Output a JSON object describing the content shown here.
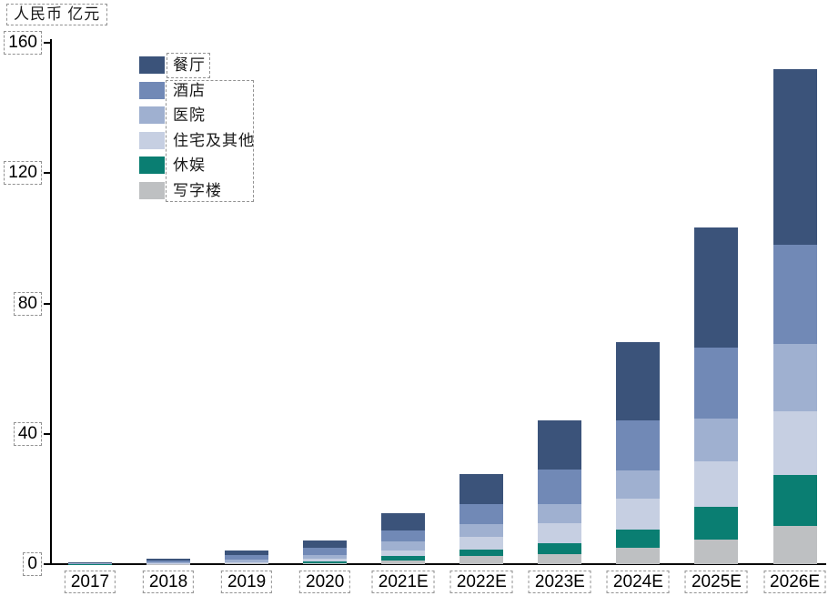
{
  "axis": {
    "y_title": "人民币 亿元",
    "y_ticks": [
      "0",
      "40",
      "80",
      "120",
      "160"
    ],
    "x_labels": [
      "2017",
      "2018",
      "2019",
      "2020",
      "2021E",
      "2022E",
      "2023E",
      "2024E",
      "2025E",
      "2026E"
    ]
  },
  "chart_data": {
    "type": "bar",
    "stacked": true,
    "title": "",
    "xlabel": "",
    "ylabel": "人民币 亿元",
    "categories": [
      "2017",
      "2018",
      "2019",
      "2020",
      "2021E",
      "2022E",
      "2023E",
      "2024E",
      "2025E",
      "2026E"
    ],
    "series": [
      {
        "name": "餐厅",
        "color": "#3b537a",
        "values": [
          0.3,
          0.5,
          1.5,
          2.5,
          5.4,
          9.1,
          15.1,
          24.0,
          36.7,
          54.0
        ]
      },
      {
        "name": "酒店",
        "color": "#7189b6",
        "values": [
          0.2,
          0.7,
          1.3,
          2.0,
          3.3,
          6.2,
          10.6,
          15.3,
          22.0,
          30.2
        ]
      },
      {
        "name": "医院",
        "color": "#9fb0d0",
        "values": [
          0.1,
          0.3,
          0.8,
          1.2,
          2.7,
          3.8,
          5.8,
          8.8,
          13.1,
          20.8
        ]
      },
      {
        "name": "住宅及其他",
        "color": "#c6cfe2",
        "values": [
          0.05,
          0.1,
          0.3,
          0.8,
          1.9,
          3.9,
          6.3,
          9.4,
          13.9,
          19.4
        ]
      },
      {
        "name": "休娱",
        "color": "#0a7e72",
        "values": [
          0.03,
          0.05,
          0.2,
          0.5,
          1.3,
          2.1,
          3.3,
          5.6,
          10.0,
          15.8
        ]
      },
      {
        "name": "写字楼",
        "color": "#bec0c2",
        "values": [
          0.02,
          0.05,
          0.2,
          0.4,
          1.1,
          2.5,
          3.0,
          5.1,
          7.6,
          11.7
        ]
      }
    ],
    "totals_approx": [
      0.7,
      1.6,
      4.3,
      7.4,
      15.7,
      27.6,
      44.1,
      68.2,
      103.3,
      151.9
    ],
    "stack_order_bottom_to_top": [
      "写字楼",
      "休娱",
      "住宅及其他",
      "医院",
      "酒店",
      "餐厅"
    ],
    "ylim": [
      0,
      160
    ],
    "yticks": [
      0,
      40,
      80,
      120,
      160
    ],
    "legend_position": "top-left-inside",
    "grid": false,
    "annotation_boxes_style": "gray-dashed"
  }
}
